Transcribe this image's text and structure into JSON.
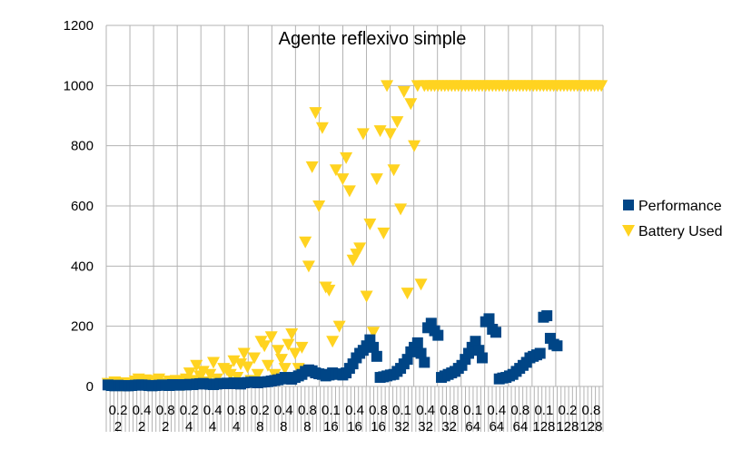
{
  "chart_data": {
    "type": "scatter",
    "title": "Agente reflexivo simple",
    "ylim": [
      0,
      1200
    ],
    "yticks": [
      0,
      200,
      400,
      600,
      800,
      1000,
      1200
    ],
    "grid": true,
    "legend_position": "right",
    "x_category_labels": [
      {
        "top": "0.2",
        "bottom": "2"
      },
      {
        "top": "0.4",
        "bottom": "2"
      },
      {
        "top": "0.8",
        "bottom": "2"
      },
      {
        "top": "0.2",
        "bottom": "4"
      },
      {
        "top": "0.4",
        "bottom": "4"
      },
      {
        "top": "0.8",
        "bottom": "4"
      },
      {
        "top": "0.2",
        "bottom": "8"
      },
      {
        "top": "0.4",
        "bottom": "8"
      },
      {
        "top": "0.8",
        "bottom": "8"
      },
      {
        "top": "0.1",
        "bottom": "16"
      },
      {
        "top": "0.4",
        "bottom": "16"
      },
      {
        "top": "0.8",
        "bottom": "16"
      },
      {
        "top": "0.1",
        "bottom": "32"
      },
      {
        "top": "0.4",
        "bottom": "32"
      },
      {
        "top": "0.8",
        "bottom": "32"
      },
      {
        "top": "0.1",
        "bottom": "64"
      },
      {
        "top": "0.4",
        "bottom": "64"
      },
      {
        "top": "0.8",
        "bottom": "64"
      },
      {
        "top": "0.1",
        "bottom": "128"
      },
      {
        "top": "0.2",
        "bottom": "128"
      },
      {
        "top": "0.8",
        "bottom": "128"
      }
    ],
    "series": [
      {
        "name": "Performance",
        "color": "#004586",
        "marker": "square",
        "values": [
          5,
          3,
          2,
          4,
          3,
          2,
          2,
          3,
          4,
          5,
          5,
          4,
          3,
          2,
          3,
          4,
          5,
          4,
          3,
          6,
          5,
          4,
          6,
          5,
          7,
          6,
          8,
          9,
          10,
          8,
          7,
          6,
          8,
          10,
          9,
          11,
          9,
          12,
          10,
          8,
          12,
          13,
          14,
          15,
          12,
          14,
          15,
          16,
          18,
          20,
          22,
          25,
          30,
          28,
          24,
          30,
          35,
          40,
          50,
          55,
          52,
          45,
          42,
          40,
          35,
          38,
          45,
          42,
          40,
          38,
          45,
          60,
          75,
          95,
          110,
          120,
          135,
          155,
          130,
          100,
          30,
          32,
          35,
          38,
          40,
          50,
          60,
          75,
          90,
          115,
          130,
          145,
          110,
          80,
          195,
          210,
          185,
          170,
          30,
          35,
          40,
          45,
          50,
          60,
          70,
          90,
          110,
          130,
          150,
          120,
          95,
          215,
          225,
          190,
          180,
          25,
          28,
          30,
          35,
          40,
          50,
          60,
          70,
          80,
          95,
          100,
          105,
          110,
          230,
          235,
          160,
          140,
          135
        ]
      },
      {
        "name": "Battery Used",
        "color": "#ffd320",
        "marker": "triangle-down",
        "values": [
          10,
          5,
          15,
          8,
          3,
          12,
          5,
          10,
          18,
          25,
          8,
          22,
          15,
          12,
          20,
          25,
          8,
          10,
          18,
          12,
          20,
          15,
          5,
          25,
          45,
          20,
          70,
          35,
          50,
          15,
          40,
          80,
          25,
          10,
          60,
          55,
          40,
          85,
          30,
          75,
          110,
          65,
          20,
          95,
          40,
          150,
          135,
          70,
          165,
          40,
          120,
          90,
          60,
          140,
          175,
          110,
          60,
          130,
          480,
          400,
          730,
          910,
          600,
          860,
          330,
          320,
          150,
          720,
          200,
          690,
          760,
          650,
          420,
          440,
          460,
          840,
          300,
          540,
          180,
          690,
          850,
          510,
          1000,
          840,
          720,
          880,
          590,
          980,
          310,
          940,
          800,
          1000,
          340,
          1000,
          1000,
          1000,
          1000,
          1000,
          1000,
          1000,
          1000,
          1000,
          1000,
          1000,
          1000,
          1000,
          1000,
          1000,
          1000,
          1000,
          1000,
          1000,
          1000,
          1000,
          1000,
          1000,
          1000,
          1000,
          1000,
          1000,
          1000,
          1000,
          1000,
          1000,
          1000,
          1000,
          1000,
          1000,
          1000,
          1000,
          1000,
          1000,
          1000,
          1000,
          1000,
          1000,
          1000,
          1000,
          1000,
          1000,
          1000,
          1000,
          1000,
          1000,
          1000,
          1000
        ]
      }
    ]
  }
}
